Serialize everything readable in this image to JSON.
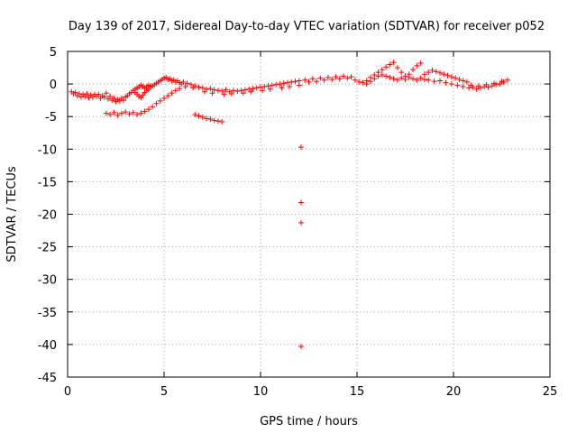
{
  "chart_data": {
    "type": "scatter",
    "title": "Day 139 of 2017, Sidereal Day-to-day VTEC variation (SDTVAR) for receiver p052",
    "xlabel": "GPS time / hours",
    "ylabel": "SDTVAR / TECUs",
    "xlim": [
      0,
      25
    ],
    "ylim": [
      -45,
      5
    ],
    "x_ticks": [
      0,
      5,
      10,
      15,
      20,
      25
    ],
    "y_ticks": [
      5,
      0,
      -5,
      -10,
      -15,
      -20,
      -25,
      -30,
      -35,
      -40,
      -45
    ],
    "grid": true,
    "marker": "+",
    "color": "#ff0000",
    "series": [
      {
        "name": "p052",
        "points": [
          [
            0.2,
            -1.2
          ],
          [
            0.3,
            -1.5
          ],
          [
            0.4,
            -1.3
          ],
          [
            0.5,
            -1.8
          ],
          [
            0.6,
            -1.5
          ],
          [
            0.7,
            -2.0
          ],
          [
            0.8,
            -1.6
          ],
          [
            0.9,
            -1.9
          ],
          [
            1.0,
            -1.5
          ],
          [
            1.1,
            -2.1
          ],
          [
            1.2,
            -1.7
          ],
          [
            1.3,
            -2.0
          ],
          [
            1.4,
            -1.6
          ],
          [
            1.5,
            -1.9
          ],
          [
            1.6,
            -1.6
          ],
          [
            1.7,
            -2.2
          ],
          [
            1.8,
            -1.8
          ],
          [
            1.9,
            -2.0
          ],
          [
            2.0,
            -1.4
          ],
          [
            2.1,
            -2.3
          ],
          [
            2.2,
            -1.9
          ],
          [
            2.3,
            -2.5
          ],
          [
            2.4,
            -2.2
          ],
          [
            2.5,
            -2.7
          ],
          [
            2.6,
            -2.4
          ],
          [
            2.7,
            -2.6
          ],
          [
            2.8,
            -2.2
          ],
          [
            2.9,
            -2.5
          ],
          [
            3.0,
            -2.0
          ],
          [
            3.1,
            -1.8
          ],
          [
            3.2,
            -1.5
          ],
          [
            3.3,
            -1.3
          ],
          [
            3.4,
            -1.0
          ],
          [
            3.5,
            -1.3
          ],
          [
            3.6,
            -1.6
          ],
          [
            3.7,
            -1.9
          ],
          [
            3.8,
            -2.1
          ],
          [
            3.9,
            -1.7
          ],
          [
            4.0,
            -1.3
          ],
          [
            4.1,
            -1.0
          ],
          [
            4.2,
            -0.8
          ],
          [
            4.3,
            -0.5
          ],
          [
            4.4,
            -0.3
          ],
          [
            4.5,
            -0.1
          ],
          [
            4.6,
            0.1
          ],
          [
            4.7,
            0.3
          ],
          [
            4.8,
            0.5
          ],
          [
            4.9,
            0.7
          ],
          [
            5.0,
            0.9
          ],
          [
            5.1,
            1.0
          ],
          [
            5.2,
            0.7
          ],
          [
            5.3,
            0.8
          ],
          [
            5.4,
            0.5
          ],
          [
            5.5,
            0.6
          ],
          [
            5.6,
            0.3
          ],
          [
            5.7,
            0.5
          ],
          [
            5.8,
            0.2
          ],
          [
            5.9,
            0.0
          ],
          [
            3.5,
            -0.8
          ],
          [
            3.6,
            -0.6
          ],
          [
            3.7,
            -0.4
          ],
          [
            3.8,
            -0.2
          ],
          [
            3.9,
            -0.4
          ],
          [
            4.0,
            -0.6
          ],
          [
            4.1,
            -0.4
          ],
          [
            4.2,
            -0.2
          ],
          [
            4.3,
            -0.3
          ],
          [
            2.0,
            -4.5
          ],
          [
            2.2,
            -4.7
          ],
          [
            2.4,
            -4.4
          ],
          [
            2.6,
            -4.8
          ],
          [
            2.8,
            -4.5
          ],
          [
            3.0,
            -4.3
          ],
          [
            3.2,
            -4.6
          ],
          [
            3.4,
            -4.4
          ],
          [
            3.6,
            -4.7
          ],
          [
            3.8,
            -4.5
          ],
          [
            4.0,
            -4.2
          ],
          [
            4.2,
            -3.9
          ],
          [
            4.4,
            -3.5
          ],
          [
            4.6,
            -3.0
          ],
          [
            4.8,
            -2.6
          ],
          [
            5.0,
            -2.2
          ],
          [
            5.2,
            -1.8
          ],
          [
            5.4,
            -1.4
          ],
          [
            5.6,
            -1.0
          ],
          [
            5.8,
            -0.7
          ],
          [
            6.6,
            -4.7
          ],
          [
            6.8,
            -4.9
          ],
          [
            7.0,
            -5.1
          ],
          [
            7.2,
            -5.3
          ],
          [
            7.4,
            -5.4
          ],
          [
            7.6,
            -5.6
          ],
          [
            7.8,
            -5.7
          ],
          [
            8.0,
            -5.8
          ],
          [
            6.0,
            0.3
          ],
          [
            6.2,
            0.1
          ],
          [
            6.4,
            -0.1
          ],
          [
            6.6,
            -0.3
          ],
          [
            6.8,
            -0.5
          ],
          [
            7.0,
            -0.6
          ],
          [
            7.2,
            -0.8
          ],
          [
            7.4,
            -0.7
          ],
          [
            7.6,
            -0.9
          ],
          [
            7.8,
            -1.0
          ],
          [
            8.0,
            -1.1
          ],
          [
            8.2,
            -0.9
          ],
          [
            8.4,
            -1.2
          ],
          [
            8.6,
            -1.0
          ],
          [
            8.8,
            -1.1
          ],
          [
            9.0,
            -1.0
          ],
          [
            9.2,
            -0.9
          ],
          [
            9.4,
            -0.8
          ],
          [
            9.6,
            -0.7
          ],
          [
            9.8,
            -0.6
          ],
          [
            10.0,
            -0.5
          ],
          [
            10.2,
            -0.4
          ],
          [
            10.4,
            -0.3
          ],
          [
            10.6,
            -0.2
          ],
          [
            10.8,
            -0.1
          ],
          [
            11.0,
            0.0
          ],
          [
            11.2,
            0.1
          ],
          [
            11.4,
            0.2
          ],
          [
            11.6,
            0.3
          ],
          [
            11.8,
            0.4
          ],
          [
            12.0,
            0.5
          ],
          [
            6.1,
            -0.4
          ],
          [
            6.5,
            -0.6
          ],
          [
            7.1,
            -1.2
          ],
          [
            7.5,
            -1.4
          ],
          [
            8.1,
            -1.6
          ],
          [
            8.5,
            -1.5
          ],
          [
            9.1,
            -1.4
          ],
          [
            9.5,
            -1.2
          ],
          [
            10.1,
            -1.0
          ],
          [
            10.5,
            -0.8
          ],
          [
            11.1,
            -0.6
          ],
          [
            11.5,
            -0.4
          ],
          [
            12.0,
            -0.2
          ],
          [
            12.3,
            0.6
          ],
          [
            12.5,
            0.3
          ],
          [
            12.7,
            0.8
          ],
          [
            12.9,
            0.4
          ],
          [
            13.1,
            0.9
          ],
          [
            13.3,
            0.6
          ],
          [
            13.5,
            1.0
          ],
          [
            13.7,
            0.7
          ],
          [
            13.9,
            1.1
          ],
          [
            14.1,
            0.8
          ],
          [
            14.3,
            1.2
          ],
          [
            14.5,
            0.9
          ],
          [
            14.7,
            1.1
          ],
          [
            14.9,
            0.6
          ],
          [
            15.1,
            0.3
          ],
          [
            15.3,
            0.2
          ],
          [
            15.5,
            0.5
          ],
          [
            15.7,
            1.0
          ],
          [
            15.9,
            1.4
          ],
          [
            16.1,
            1.8
          ],
          [
            16.3,
            2.2
          ],
          [
            16.5,
            2.6
          ],
          [
            16.7,
            3.0
          ],
          [
            16.9,
            3.3
          ],
          [
            17.1,
            2.5
          ],
          [
            17.3,
            1.8
          ],
          [
            17.5,
            1.2
          ],
          [
            17.7,
            1.5
          ],
          [
            17.9,
            2.2
          ],
          [
            18.1,
            2.8
          ],
          [
            18.3,
            3.2
          ],
          [
            15.5,
            0.0
          ],
          [
            15.7,
            0.4
          ],
          [
            15.9,
            0.8
          ],
          [
            16.1,
            1.2
          ],
          [
            16.3,
            1.4
          ],
          [
            16.5,
            1.2
          ],
          [
            16.7,
            1.0
          ],
          [
            16.9,
            0.8
          ],
          [
            17.1,
            0.6
          ],
          [
            17.3,
            0.9
          ],
          [
            17.5,
            0.7
          ],
          [
            17.7,
            1.0
          ],
          [
            17.9,
            0.8
          ],
          [
            18.1,
            0.6
          ],
          [
            18.3,
            0.9
          ],
          [
            18.5,
            0.7
          ],
          [
            18.5,
            1.5
          ],
          [
            18.7,
            1.8
          ],
          [
            18.9,
            2.1
          ],
          [
            19.1,
            1.9
          ],
          [
            19.3,
            1.7
          ],
          [
            19.5,
            1.5
          ],
          [
            19.7,
            1.3
          ],
          [
            19.9,
            1.1
          ],
          [
            20.1,
            0.9
          ],
          [
            20.3,
            0.7
          ],
          [
            20.5,
            0.5
          ],
          [
            20.7,
            0.3
          ],
          [
            18.7,
            0.6
          ],
          [
            19.0,
            0.4
          ],
          [
            19.3,
            0.5
          ],
          [
            19.6,
            0.2
          ],
          [
            19.9,
            0.0
          ],
          [
            20.2,
            -0.2
          ],
          [
            20.5,
            -0.4
          ],
          [
            20.8,
            -0.6
          ],
          [
            21.0,
            -0.5
          ],
          [
            21.2,
            -0.8
          ],
          [
            21.4,
            -0.6
          ],
          [
            21.6,
            -0.4
          ],
          [
            21.8,
            -0.5
          ],
          [
            22.0,
            -0.3
          ],
          [
            22.2,
            -0.1
          ],
          [
            22.4,
            0.0
          ],
          [
            22.6,
            0.3
          ],
          [
            22.8,
            0.6
          ],
          [
            20.9,
            -0.2
          ],
          [
            21.3,
            -0.3
          ],
          [
            21.7,
            -0.1
          ],
          [
            22.1,
            0.1
          ],
          [
            22.5,
            0.4
          ],
          [
            12.1,
            -9.7
          ],
          [
            12.1,
            -18.2
          ],
          [
            12.1,
            -21.3
          ],
          [
            12.1,
            -40.3
          ]
        ]
      }
    ]
  }
}
